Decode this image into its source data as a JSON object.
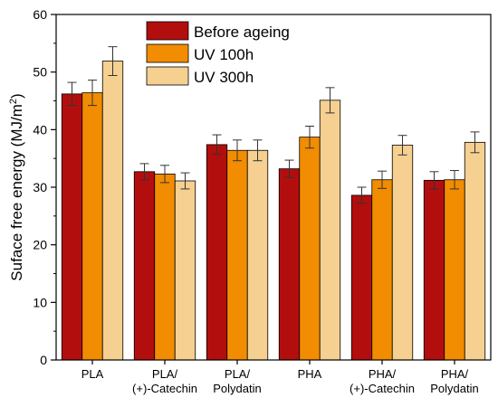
{
  "chart_data": {
    "type": "bar",
    "title": "",
    "xlabel": "",
    "ylabel": "Suface free energy (MJ/m",
    "ylabel_sup": "2",
    "ylabel_close": ")",
    "ylim": [
      0,
      60
    ],
    "yticks": [
      0,
      10,
      20,
      30,
      40,
      50,
      60
    ],
    "categories": [
      [
        "PLA"
      ],
      [
        "PLA/",
        "(+)-Catechin"
      ],
      [
        "PLA/",
        "Polydatin"
      ],
      [
        "PHA"
      ],
      [
        "PHA/",
        "(+)-Catechin"
      ],
      [
        "PHA/",
        "Polydatin"
      ]
    ],
    "series": [
      {
        "name": "Before ageing",
        "color": "#B20E0E",
        "values": [
          46.2,
          32.7,
          37.4,
          33.2,
          28.6,
          31.2
        ],
        "errors": [
          2.0,
          1.4,
          1.7,
          1.5,
          1.4,
          1.5
        ]
      },
      {
        "name": "UV 100h",
        "color": "#F28C00",
        "values": [
          46.4,
          32.3,
          36.4,
          38.7,
          31.3,
          31.3
        ],
        "errors": [
          2.2,
          1.5,
          1.8,
          1.9,
          1.5,
          1.6
        ]
      },
      {
        "name": "UV 300h",
        "color": "#F5D090",
        "values": [
          51.9,
          31.1,
          36.4,
          45.1,
          37.3,
          37.8
        ],
        "errors": [
          2.5,
          1.4,
          1.8,
          2.2,
          1.7,
          1.8
        ]
      }
    ],
    "legend_position": "top-center",
    "grid": false
  }
}
